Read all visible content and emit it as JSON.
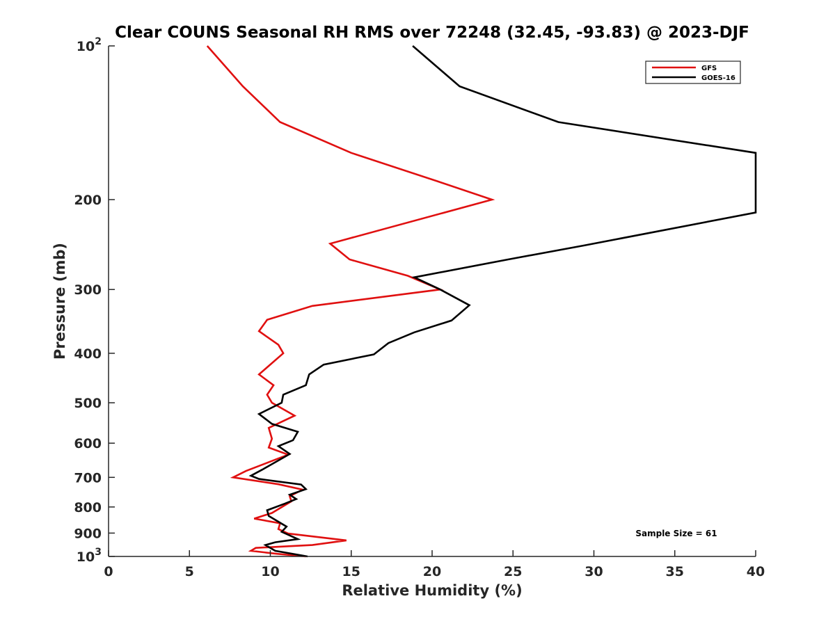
{
  "chart_data": {
    "type": "line",
    "title": "Clear COUNS Seasonal RH RMS over 72248 (32.45, -93.83) @ 2023-DJF",
    "xlabel": "Relative Humidity (%)",
    "ylabel": "Pressure (mb)",
    "xlim": [
      0,
      40
    ],
    "ylim": [
      100,
      1000
    ],
    "yscale": "log",
    "y_reversed": true,
    "x_ticks": [
      0,
      5,
      10,
      15,
      20,
      25,
      30,
      35,
      40
    ],
    "x_tick_labels": [
      "0",
      "5",
      "10",
      "15",
      "20",
      "25",
      "30",
      "35",
      "40"
    ],
    "y_ticks": [
      100,
      200,
      300,
      400,
      500,
      600,
      700,
      800,
      900,
      1000
    ],
    "y_tick_labels": [
      {
        "base": "10",
        "exp": "2"
      },
      {
        "base": "200",
        "exp": ""
      },
      {
        "base": "300",
        "exp": ""
      },
      {
        "base": "400",
        "exp": ""
      },
      {
        "base": "500",
        "exp": ""
      },
      {
        "base": "600",
        "exp": ""
      },
      {
        "base": "700",
        "exp": ""
      },
      {
        "base": "800",
        "exp": ""
      },
      {
        "base": "900",
        "exp": ""
      },
      {
        "base": "10",
        "exp": "3"
      }
    ],
    "grid": false,
    "legend_position": "top-right",
    "annotation": "Sample Size = 61",
    "series": [
      {
        "name": "GFS",
        "color": "#e01010",
        "points": [
          [
            6.1,
            100
          ],
          [
            8.3,
            120
          ],
          [
            10.6,
            141
          ],
          [
            15.0,
            162
          ],
          [
            20.3,
            184
          ],
          [
            23.7,
            200
          ],
          [
            13.7,
            244
          ],
          [
            14.9,
            262
          ],
          [
            18.5,
            282
          ],
          [
            20.5,
            300
          ],
          [
            12.6,
            323
          ],
          [
            9.8,
            344
          ],
          [
            9.3,
            362
          ],
          [
            10.5,
            385
          ],
          [
            10.8,
            400
          ],
          [
            9.3,
            440
          ],
          [
            10.2,
            462
          ],
          [
            9.8,
            482
          ],
          [
            10.1,
            500
          ],
          [
            11.5,
            530
          ],
          [
            9.9,
            560
          ],
          [
            10.1,
            588
          ],
          [
            9.9,
            612
          ],
          [
            11.1,
            632
          ],
          [
            8.5,
            680
          ],
          [
            7.7,
            700
          ],
          [
            10.5,
            722
          ],
          [
            12.0,
            740
          ],
          [
            11.2,
            762
          ],
          [
            11.3,
            780
          ],
          [
            10.1,
            822
          ],
          [
            9.0,
            843
          ],
          [
            10.6,
            861
          ],
          [
            10.5,
            884
          ],
          [
            11.1,
            902
          ],
          [
            14.7,
            930
          ],
          [
            12.6,
            950
          ],
          [
            9.1,
            962
          ],
          [
            8.8,
            975
          ],
          [
            10.4,
            988
          ],
          [
            12.2,
            1000
          ]
        ]
      },
      {
        "name": "GOES-16",
        "color": "#000000",
        "points": [
          [
            18.8,
            100
          ],
          [
            21.7,
            120
          ],
          [
            27.8,
            141
          ],
          [
            40.0,
            162
          ],
          [
            40.0,
            212
          ],
          [
            29.4,
            246
          ],
          [
            24.7,
            262
          ],
          [
            18.9,
            284
          ],
          [
            20.5,
            300
          ],
          [
            22.3,
            322
          ],
          [
            21.2,
            345
          ],
          [
            18.9,
            364
          ],
          [
            17.3,
            382
          ],
          [
            16.4,
            402
          ],
          [
            13.3,
            421
          ],
          [
            12.4,
            440
          ],
          [
            12.2,
            462
          ],
          [
            10.8,
            482
          ],
          [
            10.7,
            500
          ],
          [
            9.3,
            526
          ],
          [
            10.1,
            550
          ],
          [
            11.7,
            570
          ],
          [
            11.4,
            592
          ],
          [
            10.5,
            608
          ],
          [
            11.2,
            630
          ],
          [
            9.5,
            676
          ],
          [
            8.8,
            695
          ],
          [
            9.3,
            705
          ],
          [
            11.9,
            723
          ],
          [
            12.2,
            738
          ],
          [
            11.2,
            757
          ],
          [
            11.6,
            772
          ],
          [
            10.9,
            788
          ],
          [
            9.8,
            812
          ],
          [
            9.9,
            833
          ],
          [
            11.0,
            874
          ],
          [
            10.7,
            895
          ],
          [
            11.7,
            925
          ],
          [
            10.3,
            938
          ],
          [
            9.7,
            950
          ],
          [
            10.3,
            975
          ],
          [
            12.3,
            1000
          ]
        ]
      }
    ]
  },
  "colors": {
    "axis": "#262626",
    "background": "#ffffff"
  }
}
